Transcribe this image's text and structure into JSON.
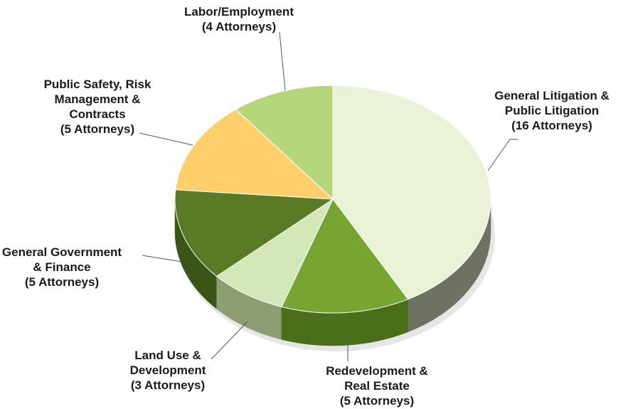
{
  "chart_data": {
    "type": "pie",
    "title": "",
    "unit": "Attorneys",
    "series": [
      {
        "name": "",
        "values": [
          16,
          5,
          3,
          5,
          5,
          4
        ]
      }
    ],
    "slices": [
      {
        "label": "General Litigation & Public Litigation",
        "value": 16,
        "label_lines": [
          "General Litigation &",
          "Public Litigation",
          "(16 Attorneys)"
        ],
        "color": "#EAF2D8",
        "side_color": "#6E7260"
      },
      {
        "label": "Redevelopment & Real Estate",
        "value": 5,
        "label_lines": [
          "Redevelopment &",
          "Real Estate",
          "(5 Attorneys)"
        ],
        "color": "#77A532",
        "side_color": "#4A6E1A"
      },
      {
        "label": "Land Use & Development",
        "value": 3,
        "label_lines": [
          "Land Use &",
          "Development",
          "(3 Attorneys)"
        ],
        "color": "#D4E7B8",
        "side_color": "#8C9E72"
      },
      {
        "label": "General Government & Finance",
        "value": 5,
        "label_lines": [
          "General Government",
          "& Finance",
          "(5 Attorneys)"
        ],
        "color": "#5A7B26",
        "side_color": "#3B5517"
      },
      {
        "label": "Public Safety, Risk Management & Contracts",
        "value": 5,
        "label_lines": [
          "Public Safety, Risk",
          "Management &",
          "Contracts",
          "(5 Attorneys)"
        ],
        "color": "#FFCF6B",
        "side_color": "#B3893A"
      },
      {
        "label": "Labor/Employment",
        "value": 4,
        "label_lines": [
          "Labor/Employment",
          "(4 Attorneys)"
        ],
        "color": "#B6D67C",
        "side_color": "#7E9A50"
      }
    ],
    "style": "3d-pie",
    "legend": "none",
    "data_labels": "outside-with-leader-lines"
  }
}
